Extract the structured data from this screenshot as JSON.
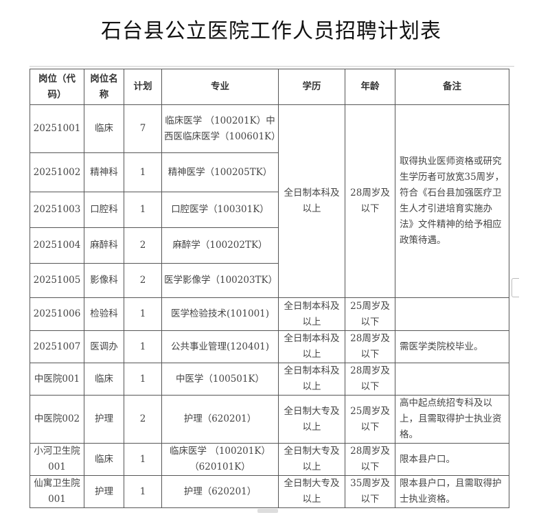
{
  "title": "石台县公立医院工作人员招聘计划表",
  "headers": [
    "岗位（代码）",
    "岗位名称",
    "计划",
    "专业",
    "学历",
    "年龄",
    "备注"
  ],
  "group_education": "全日制本科及以上",
  "group_age": "28周岁及以下",
  "group_note": "取得执业医师资格或研究生学历者可放宽35周岁，符合《石台县加强医疗卫生人才引进培育实施办法》文件精神的给予相应政策待遇。",
  "rows": [
    {
      "code": "20251001",
      "name": "临床",
      "plan": "7",
      "major": "临床医学 （100201K）中西医临床医学（100601K）"
    },
    {
      "code": "20251002",
      "name": "精神科",
      "plan": "1",
      "major": "精神医学（100205TK）"
    },
    {
      "code": "20251003",
      "name": "口腔科",
      "plan": "1",
      "major": "口腔医学（100301K）"
    },
    {
      "code": "20251004",
      "name": "麻醉科",
      "plan": "2",
      "major": "麻醉学（100202TK）"
    },
    {
      "code": "20251005",
      "name": "影像科",
      "plan": "2",
      "major": "医学影像学（100203TK）"
    },
    {
      "code": "20251006",
      "name": "检验科",
      "plan": "1",
      "major": "医学检验技术(101001)",
      "education": "全日制本科及以上",
      "age": "25周岁及以下",
      "note": ""
    },
    {
      "code": "20251007",
      "name": "医调办",
      "plan": "1",
      "major": "公共事业管理(120401)",
      "education": "全日制本科及以上",
      "age": "28周岁及以下",
      "note": "需医学类院校毕业。"
    },
    {
      "code": "中医院001",
      "name": "临床",
      "plan": "1",
      "major": "中医学（100501K）",
      "education": "全日制本科及以上",
      "age": "28周岁及以下",
      "note": ""
    },
    {
      "code": "中医院002",
      "name": "护理",
      "plan": "2",
      "major": "护理（620201）",
      "education": "全日制大专及以上",
      "age": "25周岁及以下",
      "note": "高中起点统招专科及以上，且需取得护士执业资格。"
    },
    {
      "code": "小河卫生院001",
      "name": "临床",
      "plan": "1",
      "major": "临床医学 （100201K）（620101K）",
      "education": "全日制大专及以上",
      "age": "28周岁及以下",
      "note": "限本县户口。"
    },
    {
      "code": "仙寓卫生院001",
      "name": "护理",
      "plan": "1",
      "major": "护理（620201）",
      "education": "全日制大专及以上",
      "age": "35周岁及以下",
      "note": "限本县户口，且需取得护士执业资格。"
    }
  ]
}
